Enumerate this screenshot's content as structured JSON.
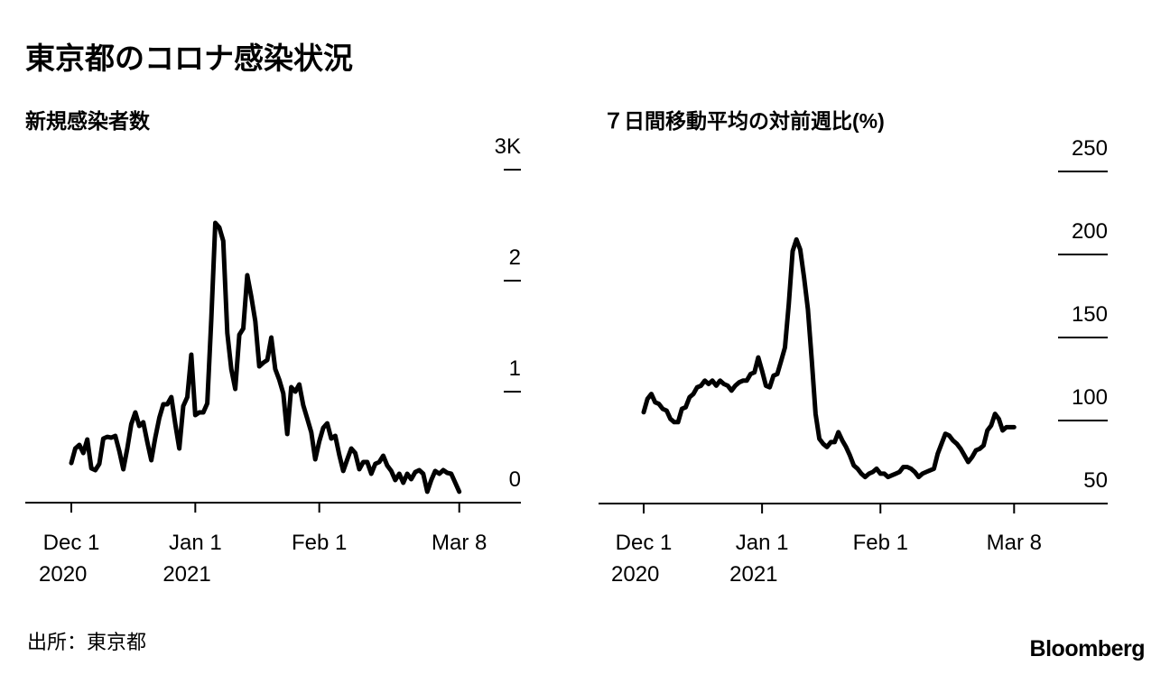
{
  "title": "東京都のコロナ感染状況",
  "source": "出所：東京都",
  "brand": "Bloomberg",
  "colors": {
    "line": "#000000",
    "axis": "#000000",
    "background": "#ffffff"
  },
  "chart_data": [
    {
      "type": "line",
      "title": "新規感染者数",
      "xlabel": "",
      "ylabel": "",
      "x_ticks": [
        {
          "label": "Dec 1",
          "sublabel": "2020",
          "day": 0
        },
        {
          "label": "Jan 1",
          "sublabel": "2021",
          "day": 31
        },
        {
          "label": "Feb 1",
          "sublabel": "",
          "day": 62
        },
        {
          "label": "Mar 8",
          "sublabel": "",
          "day": 97
        }
      ],
      "y_ticks": [
        {
          "label": "0",
          "value": 0
        },
        {
          "label": "1",
          "value": 1000
        },
        {
          "label": "2",
          "value": 2000
        },
        {
          "label": "3K",
          "value": 3000
        }
      ],
      "ylim": [
        0,
        3000
      ],
      "grid": false,
      "legend": null,
      "series": [
        {
          "name": "新規感染者数",
          "x_days": [
            0,
            1,
            2,
            3,
            4,
            5,
            6,
            7,
            8,
            9,
            10,
            11,
            12,
            13,
            14,
            15,
            16,
            17,
            18,
            19,
            20,
            21,
            22,
            23,
            24,
            25,
            26,
            27,
            28,
            29,
            30,
            31,
            32,
            33,
            34,
            35,
            36,
            37,
            38,
            39,
            40,
            41,
            42,
            43,
            44,
            45,
            46,
            47,
            48,
            49,
            50,
            51,
            52,
            53,
            54,
            55,
            56,
            57,
            58,
            59,
            60,
            61,
            62,
            63,
            64,
            65,
            66,
            67,
            68,
            69,
            70,
            71,
            72,
            73,
            74,
            75,
            76,
            77,
            78,
            79,
            80,
            81,
            82,
            83,
            84,
            85,
            86,
            87,
            88,
            89,
            90,
            91,
            92,
            93,
            94,
            95,
            96,
            97
          ],
          "values": [
            357,
            488,
            520,
            447,
            569,
            309,
            293,
            350,
            577,
            593,
            585,
            602,
            463,
            301,
            488,
            707,
            813,
            691,
            724,
            545,
            382,
            585,
            764,
            886,
            886,
            951,
            707,
            488,
            870,
            951,
            1333,
            789,
            813,
            813,
            894,
            1642,
            2520,
            2480,
            2358,
            1528,
            1203,
            1024,
            1512,
            1569,
            2049,
            1854,
            1634,
            1228,
            1260,
            1285,
            1488,
            1203,
            1106,
            984,
            618,
            1041,
            1000,
            1065,
            878,
            756,
            634,
            390,
            553,
            675,
            715,
            577,
            602,
            431,
            285,
            390,
            488,
            447,
            301,
            366,
            366,
            260,
            350,
            366,
            423,
            333,
            285,
            203,
            260,
            179,
            260,
            211,
            276,
            293,
            260,
            98,
            203,
            285,
            260,
            293,
            268,
            260,
            179,
            98
          ]
        }
      ]
    },
    {
      "type": "line",
      "title": "７日間移動平均の対前週比(%)",
      "xlabel": "",
      "ylabel": "%",
      "x_ticks": [
        {
          "label": "Dec 1",
          "sublabel": "2020",
          "day": 0
        },
        {
          "label": "Jan 1",
          "sublabel": "2021",
          "day": 31
        },
        {
          "label": "Feb 1",
          "sublabel": "",
          "day": 62
        },
        {
          "label": "Mar 8",
          "sublabel": "",
          "day": 97
        }
      ],
      "y_ticks": [
        {
          "label": "50",
          "value": 50
        },
        {
          "label": "100",
          "value": 100
        },
        {
          "label": "150",
          "value": 150
        },
        {
          "label": "200",
          "value": 200
        },
        {
          "label": "250",
          "value": 250
        }
      ],
      "ylim": [
        50,
        250
      ],
      "grid": false,
      "legend": null,
      "series": [
        {
          "name": "7日間移動平均の対前週比",
          "x_days": [
            0,
            1,
            2,
            3,
            4,
            5,
            6,
            7,
            8,
            9,
            10,
            11,
            12,
            13,
            14,
            15,
            16,
            17,
            18,
            19,
            20,
            21,
            22,
            23,
            24,
            25,
            26,
            27,
            28,
            29,
            30,
            31,
            32,
            33,
            34,
            35,
            36,
            37,
            38,
            39,
            40,
            41,
            42,
            43,
            44,
            45,
            46,
            47,
            48,
            49,
            50,
            51,
            52,
            53,
            54,
            55,
            56,
            57,
            58,
            59,
            60,
            61,
            62,
            63,
            64,
            65,
            66,
            67,
            68,
            69,
            70,
            71,
            72,
            73,
            74,
            75,
            76,
            77,
            78,
            79,
            80,
            81,
            82,
            83,
            84,
            85,
            86,
            87,
            88,
            89,
            90,
            91,
            92,
            93,
            94,
            95,
            96,
            97
          ],
          "values": [
            105,
            113,
            116,
            111,
            110,
            107,
            106,
            101,
            99,
            99,
            107,
            108,
            114,
            116,
            120,
            121,
            124,
            122,
            124,
            121,
            124,
            122,
            121,
            118,
            121,
            123,
            124,
            124,
            128,
            129,
            138,
            130,
            121,
            120,
            127,
            128,
            136,
            144,
            170,
            202,
            209,
            203,
            186,
            167,
            137,
            104,
            89,
            86,
            84,
            87,
            87,
            93,
            88,
            84,
            79,
            73,
            71,
            68,
            66,
            68,
            69,
            71,
            68,
            68,
            66,
            67,
            68,
            69,
            72,
            72,
            71,
            69,
            66,
            68,
            69,
            70,
            71,
            80,
            86,
            92,
            91,
            88,
            86,
            83,
            79,
            75,
            78,
            82,
            83,
            85,
            94,
            97,
            104,
            101,
            94,
            96,
            96,
            96
          ]
        }
      ]
    }
  ]
}
